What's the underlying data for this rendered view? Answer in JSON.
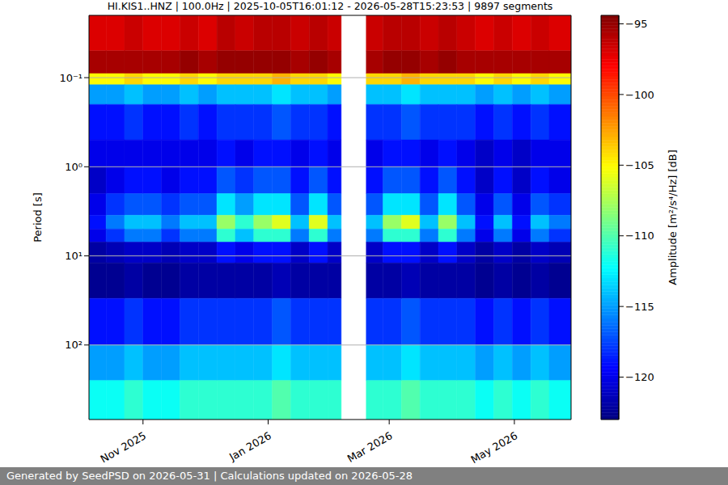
{
  "chart_data": {
    "type": "heatmap",
    "title": "HI.KIS1..HNZ | 100.0Hz | 2025-10-05T16:01:12 - 2026-05-28T15:23:53 | 9897 segments",
    "footer": "Generated by SeedPSD on 2026-05-31 | Calculations updated on 2026-05-28",
    "ylabel": "Period [s]",
    "colorbar_label": "Amplitude [m²/s⁴/Hz] [dB]",
    "log": "y",
    "grid": true,
    "xlim": [
      0.67,
      235.64
    ],
    "xticks": [
      {
        "value": 27,
        "label": "Nov 2025"
      },
      {
        "value": 88,
        "label": "Jan 2026"
      },
      {
        "value": 147,
        "label": "Mar 2026"
      },
      {
        "value": 208,
        "label": "May 2026"
      }
    ],
    "ylim": [
      0.02,
      686
    ],
    "yticks": [
      {
        "value": 0.1,
        "label": "10⁻¹"
      },
      {
        "value": 1,
        "label": "10⁰"
      },
      {
        "value": 10,
        "label": "10¹"
      },
      {
        "value": 100,
        "label": "10²"
      }
    ],
    "clim": [
      -123,
      -94.4
    ],
    "cticks": [
      {
        "value": -95,
        "label": "−95"
      },
      {
        "value": -100,
        "label": "−100"
      },
      {
        "value": -105,
        "label": "−105"
      },
      {
        "value": -110,
        "label": "−110"
      },
      {
        "value": -115,
        "label": "−115"
      },
      {
        "value": -120,
        "label": "−120"
      }
    ],
    "x_bins": [
      0.67,
      9,
      18,
      27,
      36,
      45,
      54,
      63,
      72,
      81,
      90,
      99,
      108,
      117,
      123.6,
      135.8,
      144,
      153,
      162,
      171,
      180,
      189,
      198,
      207,
      216,
      225,
      235.64
    ],
    "y_bins": [
      0.02,
      0.05,
      0.09,
      0.12,
      0.2,
      0.5,
      1,
      2,
      3.5,
      5,
      7,
      12,
      30,
      100,
      250,
      686
    ],
    "values": [
      [
        -97,
        -97,
        -96.5,
        -97,
        -97,
        -96.5,
        -97,
        -96,
        -96.5,
        -96,
        -96,
        -96.5,
        -96,
        -96.5,
        null,
        -96.5,
        -96,
        -96,
        -96.5,
        -96,
        -96.5,
        -97,
        -96.5,
        -97,
        -96.5,
        -97
      ],
      [
        -95.5,
        -95.5,
        -95.5,
        -95.5,
        -95.5,
        -95,
        -95.5,
        -95,
        -95,
        -95,
        -95,
        -95.5,
        -95,
        -95.5,
        null,
        -95.5,
        -95,
        -95,
        -95.5,
        -95,
        -95.5,
        -95.5,
        -95.5,
        -95.5,
        -95.5,
        -95.5
      ],
      [
        -105,
        -105,
        -104,
        -105,
        -105,
        -104,
        -105,
        -104,
        -104,
        -104,
        -103,
        -104,
        -104,
        -105,
        null,
        -104,
        -104,
        -103,
        -104,
        -104,
        -104,
        -105,
        -104,
        -105,
        -104,
        -105
      ],
      [
        -115,
        -115,
        -114,
        -115,
        -115,
        -114,
        -115,
        -114,
        -114,
        -114,
        -113,
        -114,
        -114,
        -115,
        null,
        -114,
        -114,
        -113,
        -114,
        -114,
        -114,
        -115,
        -114,
        -115,
        -114,
        -115
      ],
      [
        -119,
        -119,
        -118,
        -119,
        -119,
        -118,
        -119,
        -118,
        -118,
        -118,
        -117,
        -118,
        -118,
        -119,
        null,
        -118,
        -118,
        -117,
        -118,
        -118,
        -118,
        -119,
        -118,
        -119,
        -118,
        -119
      ],
      [
        -120,
        -120,
        -120,
        -120,
        -120,
        -120,
        -120,
        -119,
        -120,
        -119,
        -119,
        -120,
        -119,
        -120,
        null,
        -120,
        -119,
        -119,
        -120,
        -119,
        -120,
        -121,
        -120,
        -121,
        -120,
        -120
      ],
      [
        -121,
        -120,
        -119,
        -119,
        -120,
        -119,
        -119,
        -117,
        -118,
        -117,
        -117,
        -119,
        -117,
        -119,
        null,
        -119,
        -117,
        -117,
        -119,
        -117,
        -119,
        -121,
        -119,
        -121,
        -119,
        -120
      ],
      [
        -120,
        -118,
        -117,
        -117,
        -118,
        -117,
        -117,
        -113,
        -115,
        -113,
        -113,
        -117,
        -113,
        -117,
        null,
        -117,
        -113,
        -113,
        -117,
        -113,
        -117,
        -120,
        -117,
        -120,
        -117,
        -118
      ],
      [
        -119,
        -116,
        -114,
        -114,
        -116,
        -114,
        -114,
        -108,
        -111,
        -108,
        -106,
        -114,
        -106,
        -114,
        null,
        -114,
        -108,
        -106,
        -114,
        -108,
        -114,
        -119,
        -114,
        -119,
        -114,
        -116
      ],
      [
        -120,
        -118,
        -116,
        -116,
        -118,
        -116,
        -116,
        -111,
        -114,
        -111,
        -111,
        -116,
        -111,
        -116,
        null,
        -116,
        -111,
        -111,
        -116,
        -111,
        -116,
        -120,
        -116,
        -120,
        -116,
        -118
      ],
      [
        -122,
        -121.5,
        -121,
        -121,
        -121.5,
        -121,
        -121,
        -119,
        -120,
        -119,
        -119,
        -121,
        -119,
        -121,
        null,
        -121,
        -119,
        -119,
        -121,
        -119,
        -121,
        -122,
        -121,
        -122,
        -121,
        -121.5
      ],
      [
        -122.5,
        -122.5,
        -122,
        -122.5,
        -122.5,
        -122,
        -122,
        -122,
        -122,
        -122,
        -121.5,
        -122,
        -122,
        -122,
        null,
        -122,
        -122,
        -121.5,
        -122,
        -122,
        -122,
        -122.5,
        -122,
        -122.5,
        -122,
        -122.5
      ],
      [
        -119,
        -119,
        -118,
        -119,
        -119,
        -118,
        -118,
        -118,
        -118,
        -118,
        -117,
        -118,
        -118,
        -118,
        null,
        -118,
        -118,
        -117,
        -118,
        -118,
        -118,
        -119,
        -118,
        -119,
        -118,
        -119
      ],
      [
        -115,
        -115,
        -114,
        -115,
        -115,
        -114,
        -114,
        -114,
        -114,
        -114,
        -113,
        -114,
        -114,
        -114,
        null,
        -114,
        -114,
        -113,
        -114,
        -114,
        -114,
        -115,
        -114,
        -115,
        -114,
        -115
      ],
      [
        -112,
        -112,
        -111,
        -112,
        -112,
        -111,
        -111,
        -111,
        -111,
        -111,
        -110,
        -111,
        -111,
        -111,
        null,
        -111,
        -111,
        -110,
        -111,
        -111,
        -111,
        -112,
        -111,
        -112,
        -111,
        -112
      ]
    ]
  }
}
